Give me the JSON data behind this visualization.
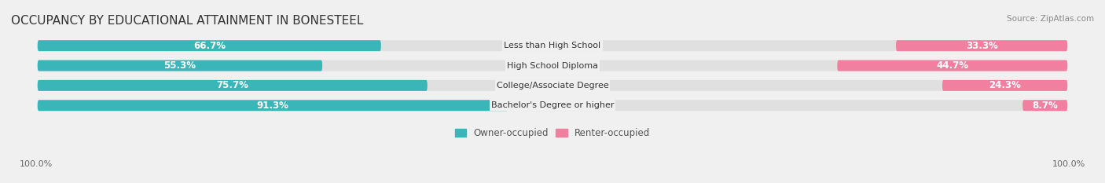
{
  "title": "OCCUPANCY BY EDUCATIONAL ATTAINMENT IN BONESTEEL",
  "source": "Source: ZipAtlas.com",
  "categories": [
    "Less than High School",
    "High School Diploma",
    "College/Associate Degree",
    "Bachelor's Degree or higher"
  ],
  "owner_values": [
    66.7,
    55.3,
    75.7,
    91.3
  ],
  "renter_values": [
    33.3,
    44.7,
    24.3,
    8.7
  ],
  "owner_color": "#3ab5b8",
  "renter_color": "#f07fa0",
  "owner_color_light": "#d0eef0",
  "renter_color_light": "#fce0ea",
  "bar_height": 0.55,
  "background_color": "#f0f0f0",
  "bar_bg_color": "#e8e8e8",
  "title_fontsize": 11,
  "label_fontsize": 8.5,
  "tick_fontsize": 8,
  "legend_fontsize": 8.5,
  "source_fontsize": 7.5,
  "axis_label_left": "100.0%",
  "axis_label_right": "100.0%"
}
